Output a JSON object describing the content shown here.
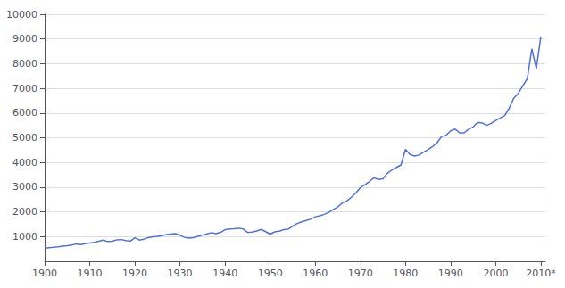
{
  "chart_data": {
    "type": "line",
    "x": [
      1900,
      1901,
      1902,
      1903,
      1904,
      1905,
      1906,
      1907,
      1908,
      1909,
      1910,
      1911,
      1912,
      1913,
      1914,
      1915,
      1916,
      1917,
      1918,
      1919,
      1920,
      1921,
      1922,
      1923,
      1924,
      1925,
      1926,
      1927,
      1928,
      1929,
      1930,
      1931,
      1932,
      1933,
      1934,
      1935,
      1936,
      1937,
      1938,
      1939,
      1940,
      1941,
      1942,
      1943,
      1944,
      1945,
      1946,
      1947,
      1948,
      1949,
      1950,
      1951,
      1952,
      1953,
      1954,
      1955,
      1956,
      1957,
      1958,
      1959,
      1960,
      1961,
      1962,
      1963,
      1964,
      1965,
      1966,
      1967,
      1968,
      1969,
      1970,
      1971,
      1972,
      1973,
      1974,
      1975,
      1976,
      1977,
      1978,
      1979,
      1980,
      1981,
      1982,
      1983,
      1984,
      1985,
      1986,
      1987,
      1988,
      1989,
      1990,
      1991,
      1992,
      1993,
      1994,
      1995,
      1996,
      1997,
      1998,
      1999,
      2000,
      2001,
      2002,
      2003,
      2004,
      2005,
      2006,
      2007,
      2008,
      2009,
      2010
    ],
    "values": [
      534,
      552,
      568,
      585,
      610,
      630,
      660,
      700,
      680,
      710,
      740,
      770,
      810,
      860,
      800,
      810,
      870,
      880,
      840,
      820,
      950,
      860,
      890,
      960,
      990,
      1010,
      1040,
      1080,
      1100,
      1120,
      1050,
      970,
      940,
      960,
      1010,
      1060,
      1110,
      1160,
      1120,
      1170,
      1280,
      1310,
      1320,
      1340,
      1310,
      1170,
      1180,
      1230,
      1290,
      1200,
      1100,
      1190,
      1220,
      1280,
      1300,
      1420,
      1530,
      1600,
      1650,
      1710,
      1800,
      1840,
      1900,
      1980,
      2100,
      2200,
      2360,
      2440,
      2590,
      2770,
      2980,
      3100,
      3230,
      3380,
      3310,
      3340,
      3560,
      3700,
      3800,
      3900,
      4530,
      4320,
      4260,
      4300,
      4420,
      4520,
      4640,
      4800,
      5050,
      5100,
      5280,
      5350,
      5200,
      5200,
      5350,
      5440,
      5620,
      5600,
      5500,
      5580,
      5700,
      5800,
      5900,
      6200,
      6600,
      6800,
      7100,
      7400,
      8600,
      7800,
      9100
    ],
    "xlim": [
      1900,
      2011
    ],
    "xticks": [
      1900,
      1910,
      1920,
      1930,
      1940,
      1950,
      1960,
      1970,
      1980,
      1990,
      2000,
      {
        "value": 2010,
        "label": "2010*"
      }
    ],
    "ylim": [
      0,
      10000
    ],
    "yticks": [
      1000,
      2000,
      3000,
      4000,
      5000,
      6000,
      7000,
      8000,
      9000,
      10000
    ],
    "grid": true
  }
}
